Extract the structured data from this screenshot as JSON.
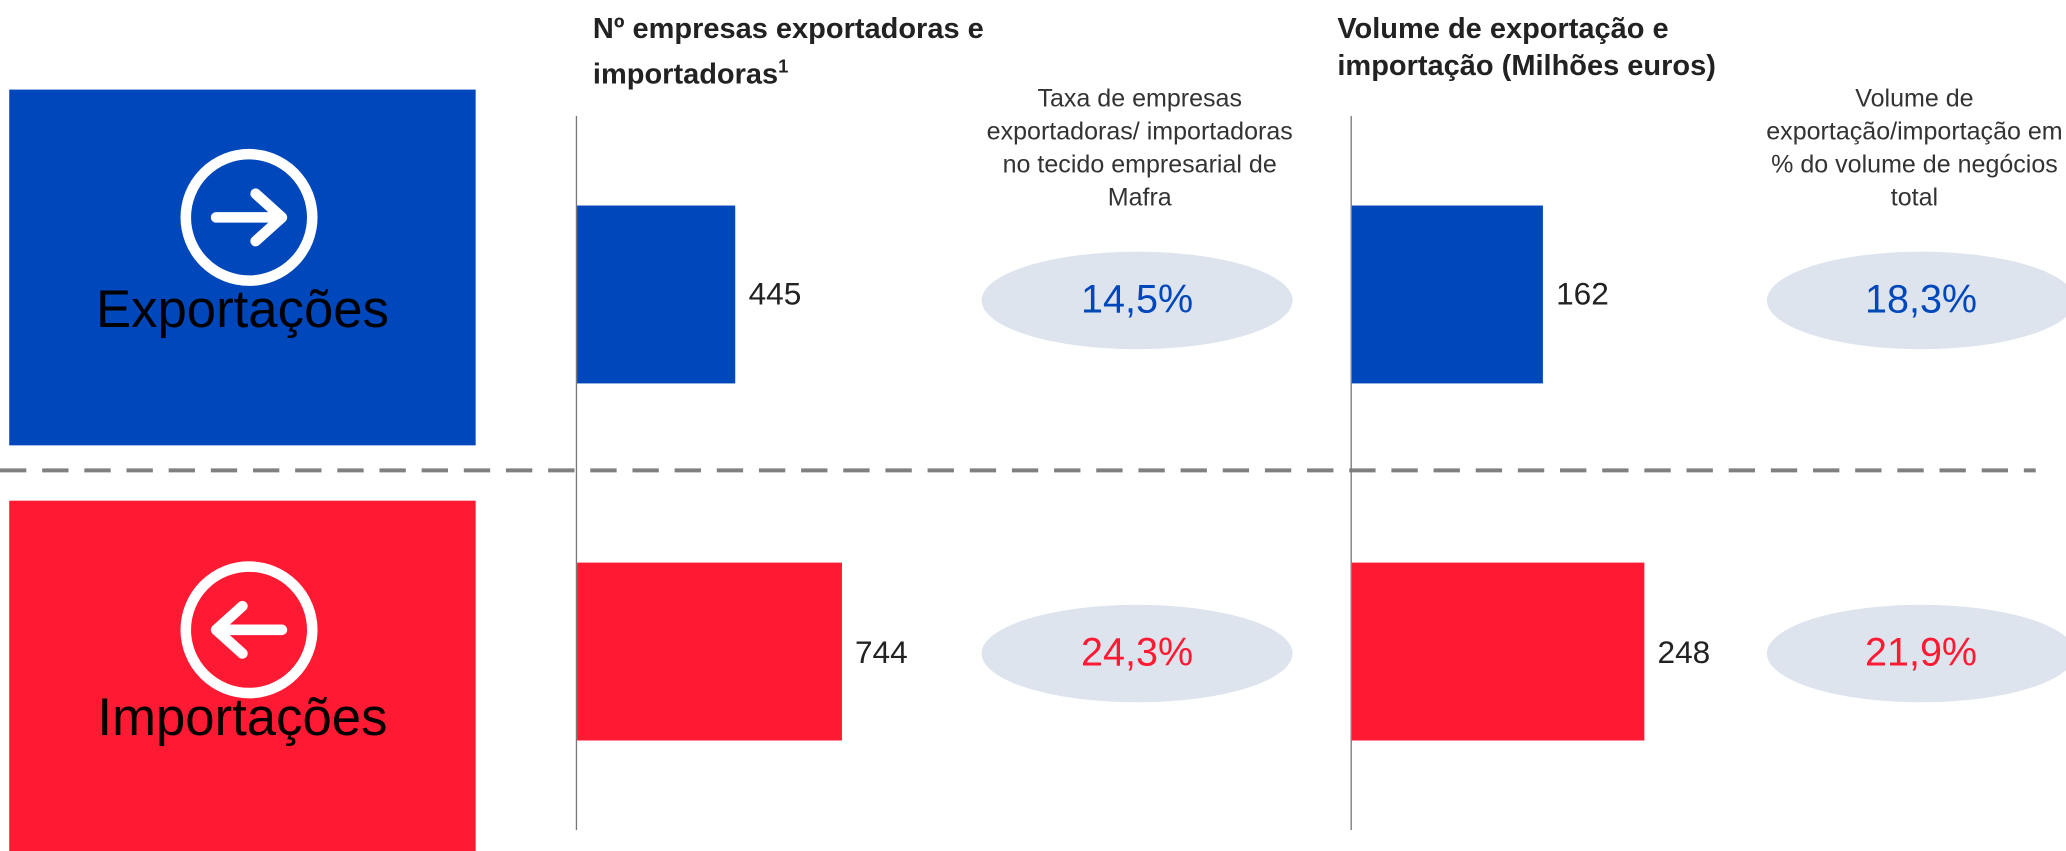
{
  "colors": [
    "#0047bb",
    "#ff1a33"
  ],
  "panels": [
    {
      "label": "Exportações"
    },
    {
      "label": "Importações"
    }
  ],
  "chart_data": [
    {
      "type": "bar",
      "title": "Nº empresas exportadoras e importadoras",
      "title_note": "1",
      "values": [
        445,
        744
      ],
      "share": {
        "label": "Taxa de empresas exportadoras/ importadoras no tecido empresarial de Mafra",
        "values": [
          14.5,
          24.3
        ],
        "value_labels": [
          "14,5%",
          "24,3%"
        ]
      }
    },
    {
      "type": "bar",
      "title": "Volume de exportação e importação (Milhões euros)",
      "values": [
        162,
        248
      ],
      "share": {
        "label": "Volume de exportação/importação em % do volume de negócios total",
        "values": [
          18.3,
          21.9
        ],
        "value_labels": [
          "18,3%",
          "21,9%"
        ]
      }
    }
  ]
}
